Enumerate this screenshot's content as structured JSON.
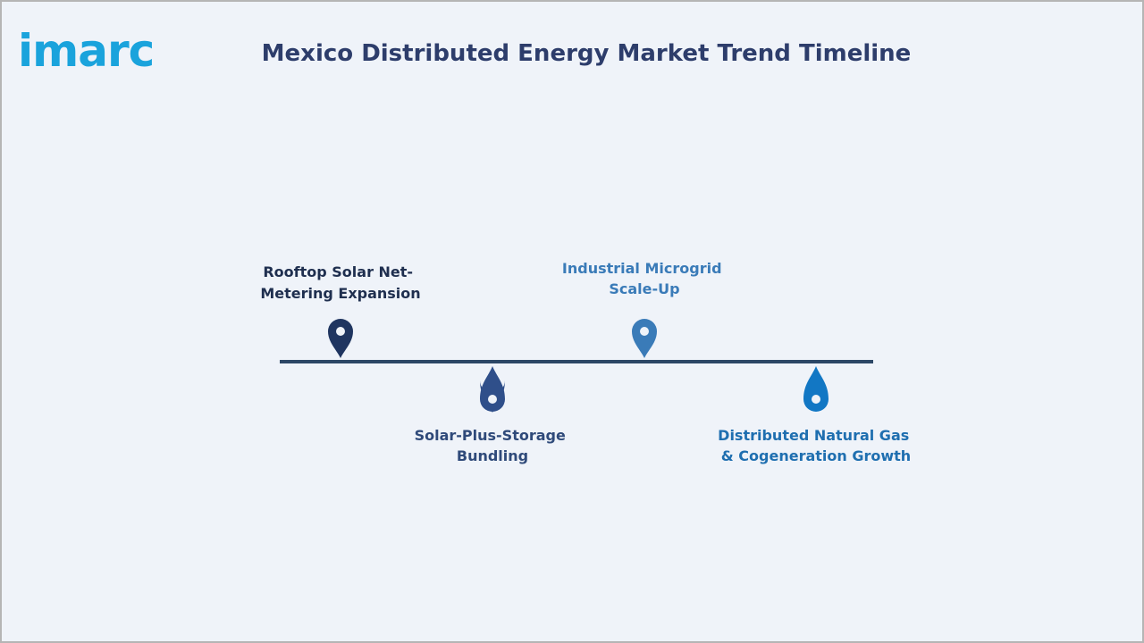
{
  "header": {
    "logo": "imarc",
    "title": "Mexico Distributed Energy Market Trend Timeline"
  },
  "timeline": {
    "items": [
      {
        "lines": [
          "Rooftop Solar Net-",
          "Metering Expansion"
        ]
      },
      {
        "lines": [
          "Solar-Plus-Storage",
          "Bundling"
        ]
      },
      {
        "lines": [
          "Industrial Microgrid",
          "Scale-Up"
        ]
      },
      {
        "lines": [
          "Distributed Natural Gas",
          "& Cogeneration Growth"
        ]
      }
    ]
  }
}
